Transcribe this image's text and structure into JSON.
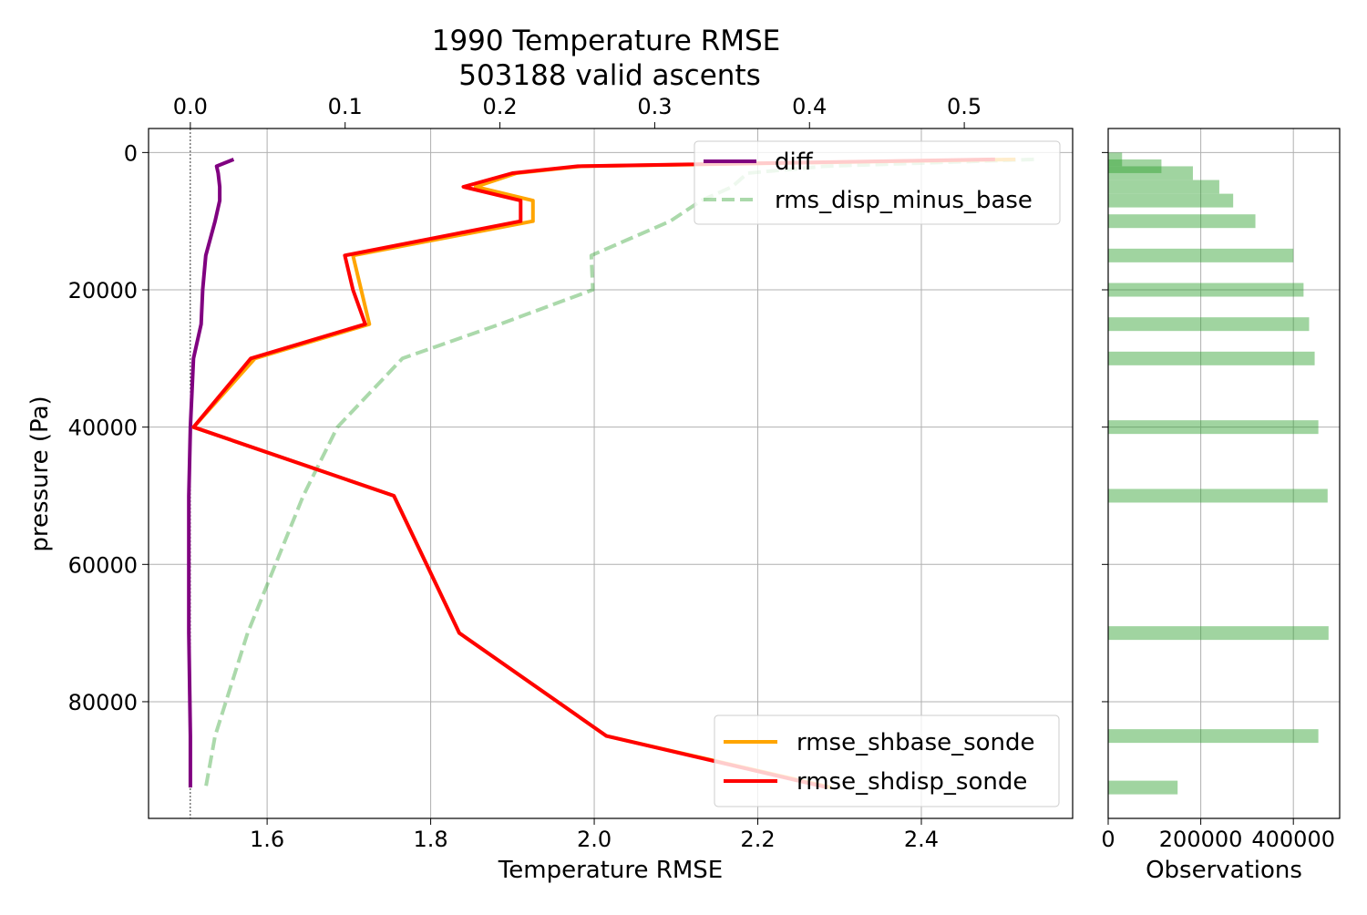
{
  "chart_data": [
    {
      "type": "line",
      "title": [
        "1990 Temperature RMSE",
        "503188 valid ascents"
      ],
      "xlabel": "Temperature RMSE",
      "ylabel": "pressure (Pa)",
      "xlim": [
        1.455,
        2.585
      ],
      "xticks": [
        "1.6",
        "1.8",
        "2.0",
        "2.2",
        "2.4"
      ],
      "ylim": [
        97000,
        -3500
      ],
      "yticks": [
        "0",
        "20000",
        "40000",
        "60000",
        "80000"
      ],
      "top_xlabel_ticks": [
        "0.0",
        "0.1",
        "0.2",
        "0.3",
        "0.4",
        "0.5"
      ],
      "top_xlim": [
        -0.027,
        0.57
      ],
      "grid": true,
      "pressure": [
        1000,
        2000,
        3000,
        5000,
        7000,
        10000,
        15000,
        20000,
        25000,
        30000,
        40000,
        50000,
        70000,
        85000,
        92500
      ],
      "series": [
        {
          "name": "rmse_shbase_sonde",
          "axis": "bottom",
          "color": "#ffa500",
          "style": "solid",
          "values": [
            2.515,
            1.985,
            1.905,
            1.855,
            1.925,
            1.925,
            1.705,
            1.715,
            1.725,
            1.585,
            1.51,
            1.755,
            1.835,
            2.015,
            2.29
          ]
        },
        {
          "name": "rmse_shdisp_sonde",
          "axis": "bottom",
          "color": "#ff0000",
          "style": "solid",
          "values": [
            2.49,
            1.98,
            1.9,
            1.84,
            1.91,
            1.91,
            1.695,
            1.705,
            1.72,
            1.58,
            1.51,
            1.755,
            1.835,
            2.015,
            2.285
          ]
        },
        {
          "name": "diff",
          "axis": "top",
          "color": "#800080",
          "style": "solid",
          "values": [
            0.028,
            0.017,
            0.018,
            0.019,
            0.019,
            0.016,
            0.01,
            0.008,
            0.007,
            0.002,
            0.0,
            -0.001,
            -0.001,
            0.0,
            0.0
          ]
        },
        {
          "name": "rms_disp_minus_base",
          "axis": "top",
          "color": "#2ca02c",
          "style": "dashed",
          "values": [
            0.545,
            0.41,
            0.36,
            0.35,
            0.33,
            0.31,
            0.259,
            0.26,
            0.2,
            0.137,
            0.095,
            0.073,
            0.037,
            0.016,
            0.01
          ]
        }
      ],
      "legends": [
        {
          "position": "upper right",
          "entries": [
            "diff",
            "rms_disp_minus_base"
          ]
        },
        {
          "position": "lower right",
          "entries": [
            "rmse_shbase_sonde",
            "rmse_shdisp_sonde"
          ]
        }
      ]
    },
    {
      "type": "bar",
      "orientation": "horizontal",
      "xlabel": "Observations",
      "xticks": [
        "0",
        "200000",
        "400000"
      ],
      "xlim": [
        0,
        500000
      ],
      "color": "#2ca02c",
      "pressure": [
        1000,
        2000,
        3000,
        5000,
        7000,
        10000,
        15000,
        20000,
        25000,
        30000,
        40000,
        50000,
        70000,
        85000,
        92500
      ],
      "values": [
        30000,
        115000,
        183000,
        240000,
        270000,
        318000,
        400000,
        422000,
        434000,
        446000,
        454000,
        474000,
        476000,
        454000,
        150000
      ]
    }
  ]
}
